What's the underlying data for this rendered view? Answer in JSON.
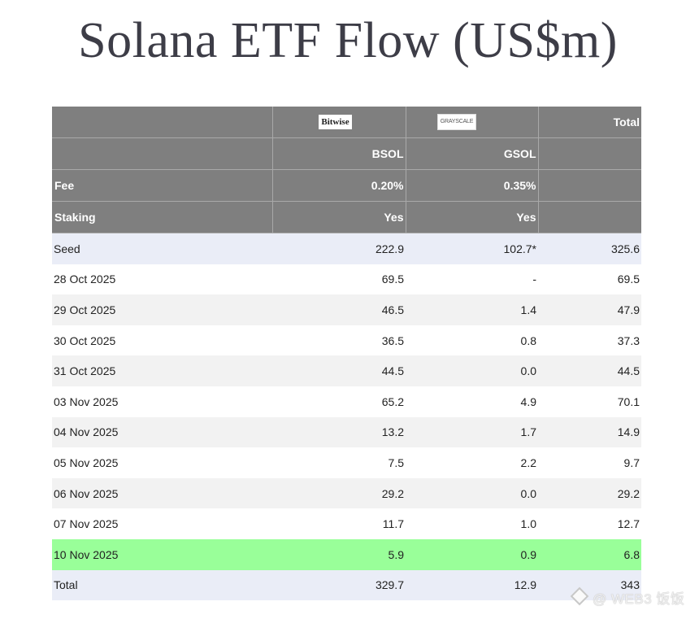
{
  "title": "Solana ETF Flow (US$m)",
  "header": {
    "logos": {
      "bitwise": "Bitwise",
      "grayscale": "GRAYSCALE"
    },
    "total_label": "Total",
    "ticker_bsol": "BSOL",
    "ticker_gsol": "GSOL",
    "fee_label": "Fee",
    "fee_bsol": "0.20%",
    "fee_gsol": "0.35%",
    "staking_label": "Staking",
    "staking_bsol": "Yes",
    "staking_gsol": "Yes"
  },
  "rows": [
    {
      "label": "Seed",
      "bsol": "222.9",
      "gsol": "102.7*",
      "total": "325.6"
    },
    {
      "label": "28 Oct 2025",
      "bsol": "69.5",
      "gsol": "-",
      "total": "69.5"
    },
    {
      "label": "29 Oct 2025",
      "bsol": "46.5",
      "gsol": "1.4",
      "total": "47.9"
    },
    {
      "label": "30 Oct 2025",
      "bsol": "36.5",
      "gsol": "0.8",
      "total": "37.3"
    },
    {
      "label": "31 Oct 2025",
      "bsol": "44.5",
      "gsol": "0.0",
      "total": "44.5"
    },
    {
      "label": "03 Nov 2025",
      "bsol": "65.2",
      "gsol": "4.9",
      "total": "70.1"
    },
    {
      "label": "04 Nov 2025",
      "bsol": "13.2",
      "gsol": "1.7",
      "total": "14.9"
    },
    {
      "label": "05 Nov 2025",
      "bsol": "7.5",
      "gsol": "2.2",
      "total": "9.7"
    },
    {
      "label": "06 Nov 2025",
      "bsol": "29.2",
      "gsol": "0.0",
      "total": "29.2"
    },
    {
      "label": "07 Nov 2025",
      "bsol": "11.7",
      "gsol": "1.0",
      "total": "12.7"
    },
    {
      "label": "10 Nov 2025",
      "bsol": "5.9",
      "gsol": "0.9",
      "total": "6.8"
    },
    {
      "label": "Total",
      "bsol": "329.7",
      "gsol": "12.9",
      "total": "343"
    }
  ],
  "watermark": "@ WEB3 饭饭",
  "colors": {
    "header_bg": "#7f7f7f",
    "seed_total_row": "#eaedf7",
    "latest_row_highlight": "#99ff99",
    "alt_row": "#f2f2f2"
  }
}
